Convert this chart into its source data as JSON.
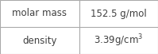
{
  "rows": [
    {
      "label": "molar mass",
      "value": "152.5 g/mol",
      "has_super": false
    },
    {
      "label": "density",
      "value_base": "3.39 g/cm",
      "value_super": "3",
      "has_super": true
    }
  ],
  "background_color": "#ffffff",
  "border_color": "#aaaaaa",
  "text_color": "#404040",
  "font_size": 8.5,
  "col_split": 0.5
}
